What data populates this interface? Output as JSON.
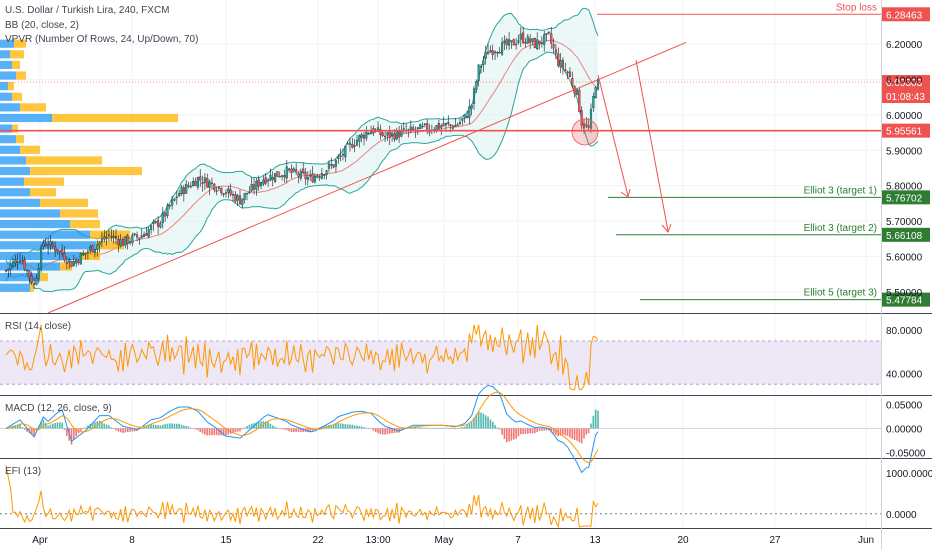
{
  "header": {
    "title": "U.S. Dollar / Turkish Lira, 240, FXCM",
    "indicator_bb": "BB (20, close, 2)",
    "indicator_vpvr": "VPVR (Number Of Rows, 24, Up/Down, 70)"
  },
  "panes": {
    "rsi_label": "RSI (14, close)",
    "macd_label": "MACD (12, 26, close, 9)",
    "efi_label": "EFI (13)"
  },
  "colors": {
    "up": "#26a69a",
    "down": "#ef5350",
    "bb": "#26a69a",
    "bb_fill": "#e0f2f1",
    "trend": "#ef5350",
    "target": "#2e7d32",
    "vpvr_up": "#2196f3",
    "vpvr_down": "#ffb300",
    "rsi": "#ff9800",
    "rsi_band": "#ede7f6",
    "macd": "#2196f3",
    "signal": "#ff9800"
  },
  "chart_data": {
    "type": "candlestick",
    "symbol": "USDTRY",
    "price_axis": [
      6.2,
      6.1,
      6.0,
      5.9,
      5.8,
      5.7,
      5.6,
      5.5
    ],
    "price_axis_labels": [
      "6.20000",
      "6.10000",
      "6.00000",
      "5.90000",
      "5.80000",
      "5.70000",
      "5.60000",
      "5.50000"
    ],
    "ylim": [
      5.44,
      6.325
    ],
    "x_tick_labels": [
      "Apr",
      "8",
      "15",
      "22",
      "13:00",
      "May",
      "7",
      "13",
      "20",
      "27",
      "Jun"
    ],
    "current_price": "6.09303",
    "countdown": "01:08:43",
    "levels": [
      {
        "name": "stop-loss",
        "label": "Stop loss",
        "price": 6.28463,
        "price_label": "6.28463",
        "color": "#ef5350"
      },
      {
        "name": "support",
        "label": "",
        "price": 5.95561,
        "price_label": "5.95561",
        "color": "#ef5350"
      },
      {
        "name": "target-1",
        "label": "Elliot 3 (target 1)",
        "price": 5.76702,
        "price_label": "5.76702",
        "color": "#2e7d32"
      },
      {
        "name": "target-2",
        "label": "Elliot 3 (target 2)",
        "price": 5.66108,
        "price_label": "5.66108",
        "color": "#2e7d32"
      },
      {
        "name": "target-3",
        "label": "Elliot 5 (target 3)",
        "price": 5.47784,
        "price_label": "5.47784",
        "color": "#2e7d32"
      }
    ],
    "close_path": [
      [
        0,
        5.56
      ],
      [
        6,
        5.6
      ],
      [
        12,
        5.52
      ],
      [
        16,
        5.64
      ],
      [
        22,
        5.62
      ],
      [
        28,
        5.58
      ],
      [
        32,
        5.6
      ],
      [
        38,
        5.63
      ],
      [
        44,
        5.66
      ],
      [
        50,
        5.64
      ],
      [
        58,
        5.66
      ],
      [
        66,
        5.7
      ],
      [
        74,
        5.78
      ],
      [
        82,
        5.82
      ],
      [
        90,
        5.8
      ],
      [
        100,
        5.76
      ],
      [
        110,
        5.82
      ],
      [
        120,
        5.84
      ],
      [
        130,
        5.82
      ],
      [
        140,
        5.86
      ],
      [
        148,
        5.92
      ],
      [
        156,
        5.96
      ],
      [
        162,
        5.94
      ],
      [
        170,
        5.95
      ],
      [
        178,
        5.96
      ],
      [
        186,
        5.97
      ],
      [
        192,
        5.97
      ],
      [
        196,
        5.99
      ],
      [
        199,
        6.03
      ],
      [
        202,
        6.13
      ],
      [
        206,
        6.18
      ],
      [
        210,
        6.19
      ],
      [
        216,
        6.2
      ],
      [
        220,
        6.22
      ],
      [
        226,
        6.2
      ],
      [
        232,
        6.22
      ],
      [
        236,
        6.15
      ],
      [
        240,
        6.12
      ],
      [
        244,
        6.06
      ],
      [
        246,
        5.98
      ],
      [
        249,
        5.96
      ],
      [
        252,
        6.09
      ]
    ],
    "rsi": {
      "axis": [
        80.0,
        40.0
      ],
      "axis_labels": [
        "80.0000",
        "40.0000"
      ],
      "band": [
        70,
        30
      ],
      "ylim": [
        20,
        95
      ]
    },
    "macd": {
      "axis": [
        0.05,
        0.0,
        -0.05
      ],
      "axis_labels": [
        "0.05000",
        "0.00000",
        "-0.05000"
      ],
      "ylim": [
        -0.062,
        0.068
      ]
    },
    "efi": {
      "axis": [
        1000,
        0
      ],
      "axis_labels": [
        "1000.0000",
        "0.0000"
      ],
      "ylim": [
        -350,
        1350
      ]
    }
  }
}
